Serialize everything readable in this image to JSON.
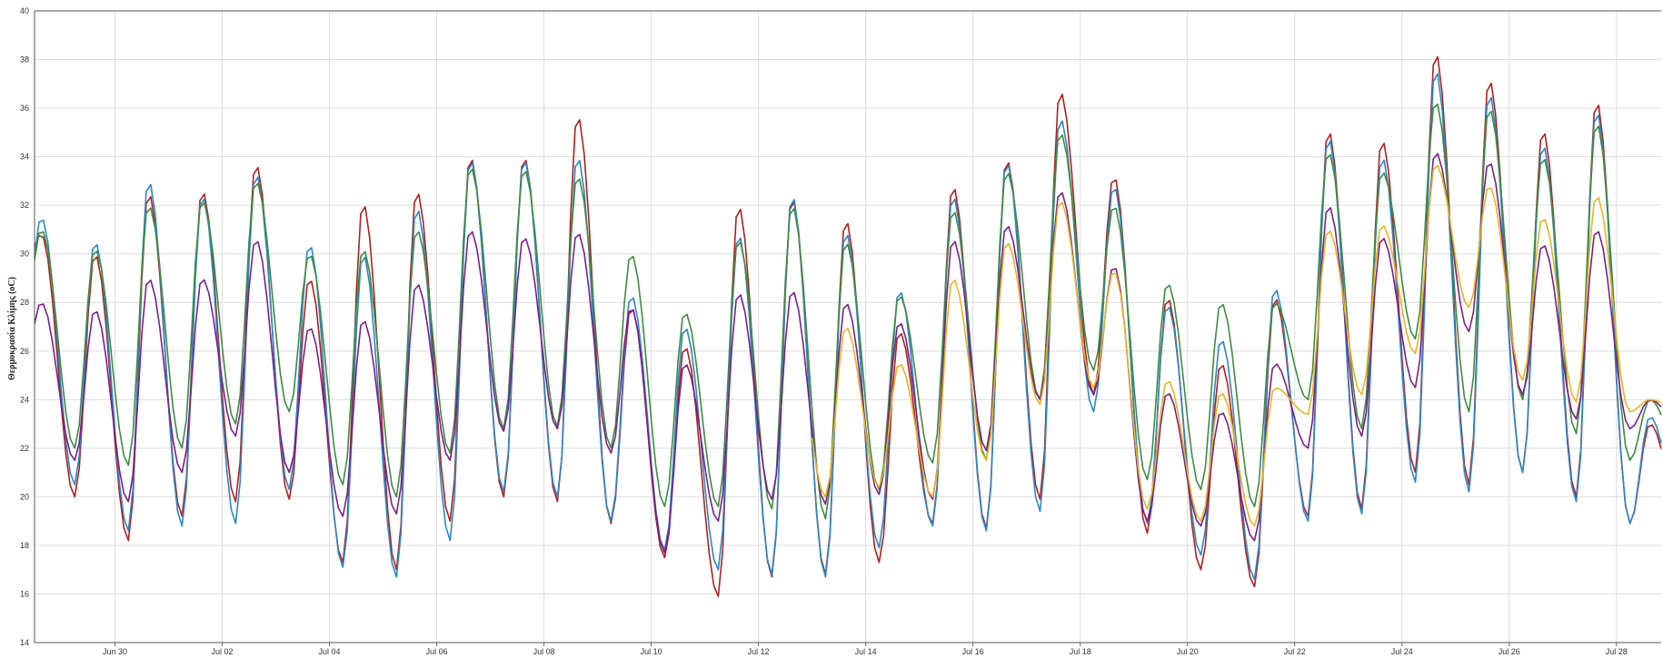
{
  "chart_data": {
    "type": "line",
    "title": "",
    "xlabel": "",
    "ylabel": "Θερμοκρασία Κλίμης (oC)",
    "ylim": [
      14,
      40
    ],
    "y_ticks": [
      14,
      16,
      18,
      20,
      22,
      24,
      26,
      28,
      30,
      32,
      34,
      36,
      38,
      40
    ],
    "xlim": [
      "2024-06-28T12:00",
      "2024-07-28T20:00"
    ],
    "x_ticks": [
      {
        "date": "2024-06-30",
        "label": "Jun 30"
      },
      {
        "date": "2024-07-02",
        "label": "Jul 02"
      },
      {
        "date": "2024-07-04",
        "label": "Jul 04"
      },
      {
        "date": "2024-07-06",
        "label": "Jul 06"
      },
      {
        "date": "2024-07-08",
        "label": "Jul 08"
      },
      {
        "date": "2024-07-10",
        "label": "Jul 10"
      },
      {
        "date": "2024-07-12",
        "label": "Jul 12"
      },
      {
        "date": "2024-07-14",
        "label": "Jul 14"
      },
      {
        "date": "2024-07-16",
        "label": "Jul 16"
      },
      {
        "date": "2024-07-18",
        "label": "Jul 18"
      },
      {
        "date": "2024-07-20",
        "label": "Jul 20"
      },
      {
        "date": "2024-07-22",
        "label": "Jul 22"
      },
      {
        "date": "2024-07-24",
        "label": "Jul 24"
      },
      {
        "date": "2024-07-26",
        "label": "Jul 26"
      },
      {
        "date": "2024-07-28",
        "label": "Jul 28"
      }
    ],
    "grid": true,
    "legend": "none",
    "series": [
      {
        "color": "#b0201e",
        "daily": [
          {
            "date": "2024-06-28T12:00",
            "min": 28.8,
            "max": 30.8
          },
          {
            "date": "2024-06-29",
            "min": 20.0,
            "max": 30.0
          },
          {
            "date": "2024-06-30",
            "min": 18.2,
            "max": 32.5
          },
          {
            "date": "2024-07-01",
            "min": 19.2,
            "max": 32.6
          },
          {
            "date": "2024-07-02",
            "min": 19.8,
            "max": 33.7
          },
          {
            "date": "2024-07-03",
            "min": 19.9,
            "max": 29.0
          },
          {
            "date": "2024-07-04",
            "min": 17.3,
            "max": 32.1
          },
          {
            "date": "2024-07-05",
            "min": 17.0,
            "max": 32.6
          },
          {
            "date": "2024-07-06",
            "min": 19.0,
            "max": 34.0
          },
          {
            "date": "2024-07-07",
            "min": 20.0,
            "max": 34.0
          },
          {
            "date": "2024-07-08",
            "min": 19.8,
            "max": 35.7
          },
          {
            "date": "2024-07-09",
            "min": 18.9,
            "max": 27.8
          },
          {
            "date": "2024-07-10",
            "min": 17.5,
            "max": 26.2
          },
          {
            "date": "2024-07-11",
            "min": 15.9,
            "max": 32.0
          },
          {
            "date": "2024-07-12",
            "min": 16.7,
            "max": 32.3
          },
          {
            "date": "2024-07-13",
            "min": 16.8,
            "max": 31.4
          },
          {
            "date": "2024-07-14",
            "min": 17.3,
            "max": 26.8
          },
          {
            "date": "2024-07-15",
            "min": 18.9,
            "max": 32.8
          },
          {
            "date": "2024-07-16",
            "min": 18.7,
            "max": 33.9
          },
          {
            "date": "2024-07-17",
            "min": 19.9,
            "max": 36.7
          },
          {
            "date": "2024-07-18",
            "min": 24.2,
            "max": 33.2
          },
          {
            "date": "2024-07-19",
            "min": 18.5,
            "max": 28.2
          },
          {
            "date": "2024-07-20",
            "min": 17.0,
            "max": 25.5
          },
          {
            "date": "2024-07-21",
            "min": 16.3,
            "max": 28.2
          },
          {
            "date": "2024-07-22",
            "min": 19.2,
            "max": 35.1
          },
          {
            "date": "2024-07-23",
            "min": 19.5,
            "max": 34.7
          },
          {
            "date": "2024-07-24",
            "min": 21.0,
            "max": 38.3
          },
          {
            "date": "2024-07-25",
            "min": 20.5,
            "max": 37.2
          },
          {
            "date": "2024-07-26",
            "min": 21.0,
            "max": 35.1
          },
          {
            "date": "2024-07-27",
            "min": 20.0,
            "max": 36.3
          },
          {
            "date": "2024-07-28T20:00",
            "min": 18.9,
            "max": 23.0
          }
        ]
      },
      {
        "color": "#2b87c8",
        "daily": [
          {
            "date": "2024-06-28T12:00",
            "min": 25.0,
            "max": 31.5
          },
          {
            "date": "2024-06-29",
            "min": 20.5,
            "max": 30.5
          },
          {
            "date": "2024-06-30",
            "min": 18.6,
            "max": 33.0
          },
          {
            "date": "2024-07-01",
            "min": 18.8,
            "max": 32.4
          },
          {
            "date": "2024-07-02",
            "min": 18.9,
            "max": 33.3
          },
          {
            "date": "2024-07-03",
            "min": 20.3,
            "max": 30.4
          },
          {
            "date": "2024-07-04",
            "min": 17.1,
            "max": 30.0
          },
          {
            "date": "2024-07-05",
            "min": 16.7,
            "max": 31.9
          },
          {
            "date": "2024-07-06",
            "min": 18.2,
            "max": 33.9
          },
          {
            "date": "2024-07-07",
            "min": 20.2,
            "max": 33.9
          },
          {
            "date": "2024-07-08",
            "min": 20.0,
            "max": 34.0
          },
          {
            "date": "2024-07-09",
            "min": 19.0,
            "max": 28.3
          },
          {
            "date": "2024-07-10",
            "min": 17.8,
            "max": 27.0
          },
          {
            "date": "2024-07-11",
            "min": 17.0,
            "max": 30.8
          },
          {
            "date": "2024-07-12",
            "min": 16.8,
            "max": 32.4
          },
          {
            "date": "2024-07-13",
            "min": 16.7,
            "max": 30.9
          },
          {
            "date": "2024-07-14",
            "min": 17.9,
            "max": 28.5
          },
          {
            "date": "2024-07-15",
            "min": 18.8,
            "max": 32.4
          },
          {
            "date": "2024-07-16",
            "min": 18.6,
            "max": 33.8
          },
          {
            "date": "2024-07-17",
            "min": 19.4,
            "max": 35.6
          },
          {
            "date": "2024-07-18",
            "min": 23.5,
            "max": 32.8
          },
          {
            "date": "2024-07-19",
            "min": 18.9,
            "max": 27.9
          },
          {
            "date": "2024-07-20",
            "min": 17.6,
            "max": 26.5
          },
          {
            "date": "2024-07-21",
            "min": 16.6,
            "max": 28.6
          },
          {
            "date": "2024-07-22",
            "min": 19.0,
            "max": 34.8
          },
          {
            "date": "2024-07-23",
            "min": 19.3,
            "max": 34.0
          },
          {
            "date": "2024-07-24",
            "min": 20.6,
            "max": 37.6
          },
          {
            "date": "2024-07-25",
            "min": 20.2,
            "max": 36.6
          },
          {
            "date": "2024-07-26",
            "min": 21.0,
            "max": 34.5
          },
          {
            "date": "2024-07-27",
            "min": 19.8,
            "max": 35.9
          },
          {
            "date": "2024-07-28T20:00",
            "min": 18.9,
            "max": 23.3
          }
        ]
      },
      {
        "color": "#3d8c40",
        "daily": [
          {
            "date": "2024-06-28T12:00",
            "min": 26.0,
            "max": 31.0
          },
          {
            "date": "2024-06-29",
            "min": 22.0,
            "max": 30.2
          },
          {
            "date": "2024-06-30",
            "min": 21.3,
            "max": 32.0
          },
          {
            "date": "2024-07-01",
            "min": 22.0,
            "max": 32.2
          },
          {
            "date": "2024-07-02",
            "min": 23.0,
            "max": 33.0
          },
          {
            "date": "2024-07-03",
            "min": 23.5,
            "max": 30.0
          },
          {
            "date": "2024-07-04",
            "min": 20.5,
            "max": 30.2
          },
          {
            "date": "2024-07-05",
            "min": 20.0,
            "max": 31.0
          },
          {
            "date": "2024-07-06",
            "min": 21.8,
            "max": 33.6
          },
          {
            "date": "2024-07-07",
            "min": 22.8,
            "max": 33.5
          },
          {
            "date": "2024-07-08",
            "min": 22.9,
            "max": 33.2
          },
          {
            "date": "2024-07-09",
            "min": 22.0,
            "max": 30.0
          },
          {
            "date": "2024-07-10",
            "min": 19.6,
            "max": 27.6
          },
          {
            "date": "2024-07-11",
            "min": 19.6,
            "max": 30.6
          },
          {
            "date": "2024-07-12",
            "min": 19.5,
            "max": 32.0
          },
          {
            "date": "2024-07-13",
            "min": 19.1,
            "max": 30.5
          },
          {
            "date": "2024-07-14",
            "min": 20.3,
            "max": 28.3
          },
          {
            "date": "2024-07-15",
            "min": 21.4,
            "max": 31.8
          },
          {
            "date": "2024-07-16",
            "min": 21.5,
            "max": 33.4
          },
          {
            "date": "2024-07-17",
            "min": 24.0,
            "max": 35.0
          },
          {
            "date": "2024-07-18",
            "min": 25.2,
            "max": 32.0
          },
          {
            "date": "2024-07-19",
            "min": 20.7,
            "max": 28.8
          },
          {
            "date": "2024-07-20",
            "min": 20.3,
            "max": 28.0
          },
          {
            "date": "2024-07-21",
            "min": 19.6,
            "max": 28.0
          },
          {
            "date": "2024-07-22",
            "min": 24.0,
            "max": 34.2
          },
          {
            "date": "2024-07-23",
            "min": 22.8,
            "max": 33.4
          },
          {
            "date": "2024-07-24",
            "min": 26.5,
            "max": 36.3
          },
          {
            "date": "2024-07-25",
            "min": 23.5,
            "max": 36.0
          },
          {
            "date": "2024-07-26",
            "min": 24.0,
            "max": 34.0
          },
          {
            "date": "2024-07-27",
            "min": 22.6,
            "max": 35.4
          },
          {
            "date": "2024-07-28T20:00",
            "min": 21.5,
            "max": 24.0
          }
        ]
      },
      {
        "color": "#7b1f8a",
        "daily": [
          {
            "date": "2024-06-28T12:00",
            "min": 24.5,
            "max": 28.0
          },
          {
            "date": "2024-06-29",
            "min": 21.5,
            "max": 27.7
          },
          {
            "date": "2024-06-30",
            "min": 19.8,
            "max": 29.0
          },
          {
            "date": "2024-07-01",
            "min": 21.0,
            "max": 29.0
          },
          {
            "date": "2024-07-02",
            "min": 22.5,
            "max": 30.6
          },
          {
            "date": "2024-07-03",
            "min": 21.0,
            "max": 27.0
          },
          {
            "date": "2024-07-04",
            "min": 19.2,
            "max": 27.3
          },
          {
            "date": "2024-07-05",
            "min": 19.3,
            "max": 28.8
          },
          {
            "date": "2024-07-06",
            "min": 21.5,
            "max": 31.0
          },
          {
            "date": "2024-07-07",
            "min": 22.7,
            "max": 30.7
          },
          {
            "date": "2024-07-08",
            "min": 22.8,
            "max": 30.9
          },
          {
            "date": "2024-07-09",
            "min": 21.8,
            "max": 27.8
          },
          {
            "date": "2024-07-10",
            "min": 17.7,
            "max": 25.5
          },
          {
            "date": "2024-07-11",
            "min": 19.0,
            "max": 28.4
          },
          {
            "date": "2024-07-12",
            "min": 19.9,
            "max": 28.5
          },
          {
            "date": "2024-07-13",
            "min": 19.7,
            "max": 28.0
          },
          {
            "date": "2024-07-14",
            "min": 20.1,
            "max": 27.2
          },
          {
            "date": "2024-07-15",
            "min": 19.9,
            "max": 30.6
          },
          {
            "date": "2024-07-16",
            "min": 21.9,
            "max": 31.2
          },
          {
            "date": "2024-07-17",
            "min": 24.0,
            "max": 32.6
          },
          {
            "date": "2024-07-18",
            "min": 24.2,
            "max": 29.5
          },
          {
            "date": "2024-07-19",
            "min": 19.0,
            "max": 24.3
          },
          {
            "date": "2024-07-20",
            "min": 18.8,
            "max": 23.5
          },
          {
            "date": "2024-07-21",
            "min": 18.2,
            "max": 25.5
          },
          {
            "date": "2024-07-22",
            "min": 22.0,
            "max": 32.0
          },
          {
            "date": "2024-07-23",
            "min": 22.5,
            "max": 30.7
          },
          {
            "date": "2024-07-24",
            "min": 24.5,
            "max": 34.2
          },
          {
            "date": "2024-07-25",
            "min": 26.8,
            "max": 33.8
          },
          {
            "date": "2024-07-26",
            "min": 24.2,
            "max": 30.4
          },
          {
            "date": "2024-07-27",
            "min": 23.2,
            "max": 31.0
          },
          {
            "date": "2024-07-28T20:00",
            "min": 22.8,
            "max": 24.0
          }
        ]
      },
      {
        "color": "#e8b520",
        "daily": [
          {
            "date": "2024-07-13",
            "min": 20.0,
            "max": 27.0
          },
          {
            "date": "2024-07-14",
            "min": 20.4,
            "max": 25.5
          },
          {
            "date": "2024-07-15",
            "min": 20.0,
            "max": 29.0
          },
          {
            "date": "2024-07-16",
            "min": 21.5,
            "max": 30.5
          },
          {
            "date": "2024-07-17",
            "min": 23.8,
            "max": 32.2
          },
          {
            "date": "2024-07-18",
            "min": 24.5,
            "max": 29.3
          },
          {
            "date": "2024-07-19",
            "min": 19.5,
            "max": 24.8
          },
          {
            "date": "2024-07-20",
            "min": 19.0,
            "max": 24.3
          },
          {
            "date": "2024-07-21",
            "min": 18.8,
            "max": 24.5
          },
          {
            "date": "2024-07-22",
            "min": 23.4,
            "max": 31.0
          },
          {
            "date": "2024-07-23",
            "min": 24.2,
            "max": 31.2
          },
          {
            "date": "2024-07-24",
            "min": 25.9,
            "max": 33.7
          },
          {
            "date": "2024-07-25",
            "min": 27.8,
            "max": 32.8
          },
          {
            "date": "2024-07-26",
            "min": 24.8,
            "max": 31.5
          },
          {
            "date": "2024-07-27",
            "min": 23.9,
            "max": 32.4
          },
          {
            "date": "2024-07-28T20:00",
            "min": 23.5,
            "max": 24.0
          }
        ]
      }
    ]
  }
}
